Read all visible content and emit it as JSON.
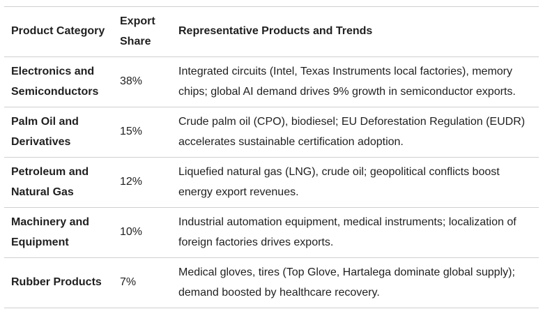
{
  "table": {
    "headers": {
      "category": "Product Category",
      "share": "Export Share",
      "products": "Representative Products and Trends"
    },
    "rows": [
      {
        "category": "Electronics and Semiconductors",
        "share": "38%",
        "products": "Integrated circuits (Intel, Texas Instruments local factories), memory chips; global AI demand drives 9% growth in semiconductor exports."
      },
      {
        "category": "Palm Oil and Derivatives",
        "share": "15%",
        "products": "Crude palm oil (CPO), biodiesel; EU Deforestation Regulation (EUDR) accelerates sustainable certification adoption."
      },
      {
        "category": "Petroleum and Natural Gas",
        "share": "12%",
        "products": "Liquefied natural gas (LNG), crude oil; geopolitical conflicts boost energy export revenues."
      },
      {
        "category": "Machinery and Equipment",
        "share": "10%",
        "products": "Industrial automation equipment, medical instruments; localization of foreign factories drives exports."
      },
      {
        "category": "Rubber Products",
        "share": "7%",
        "products": "Medical gloves, tires (Top Glove, Hartalega dominate global supply); demand boosted by healthcare recovery."
      }
    ]
  }
}
